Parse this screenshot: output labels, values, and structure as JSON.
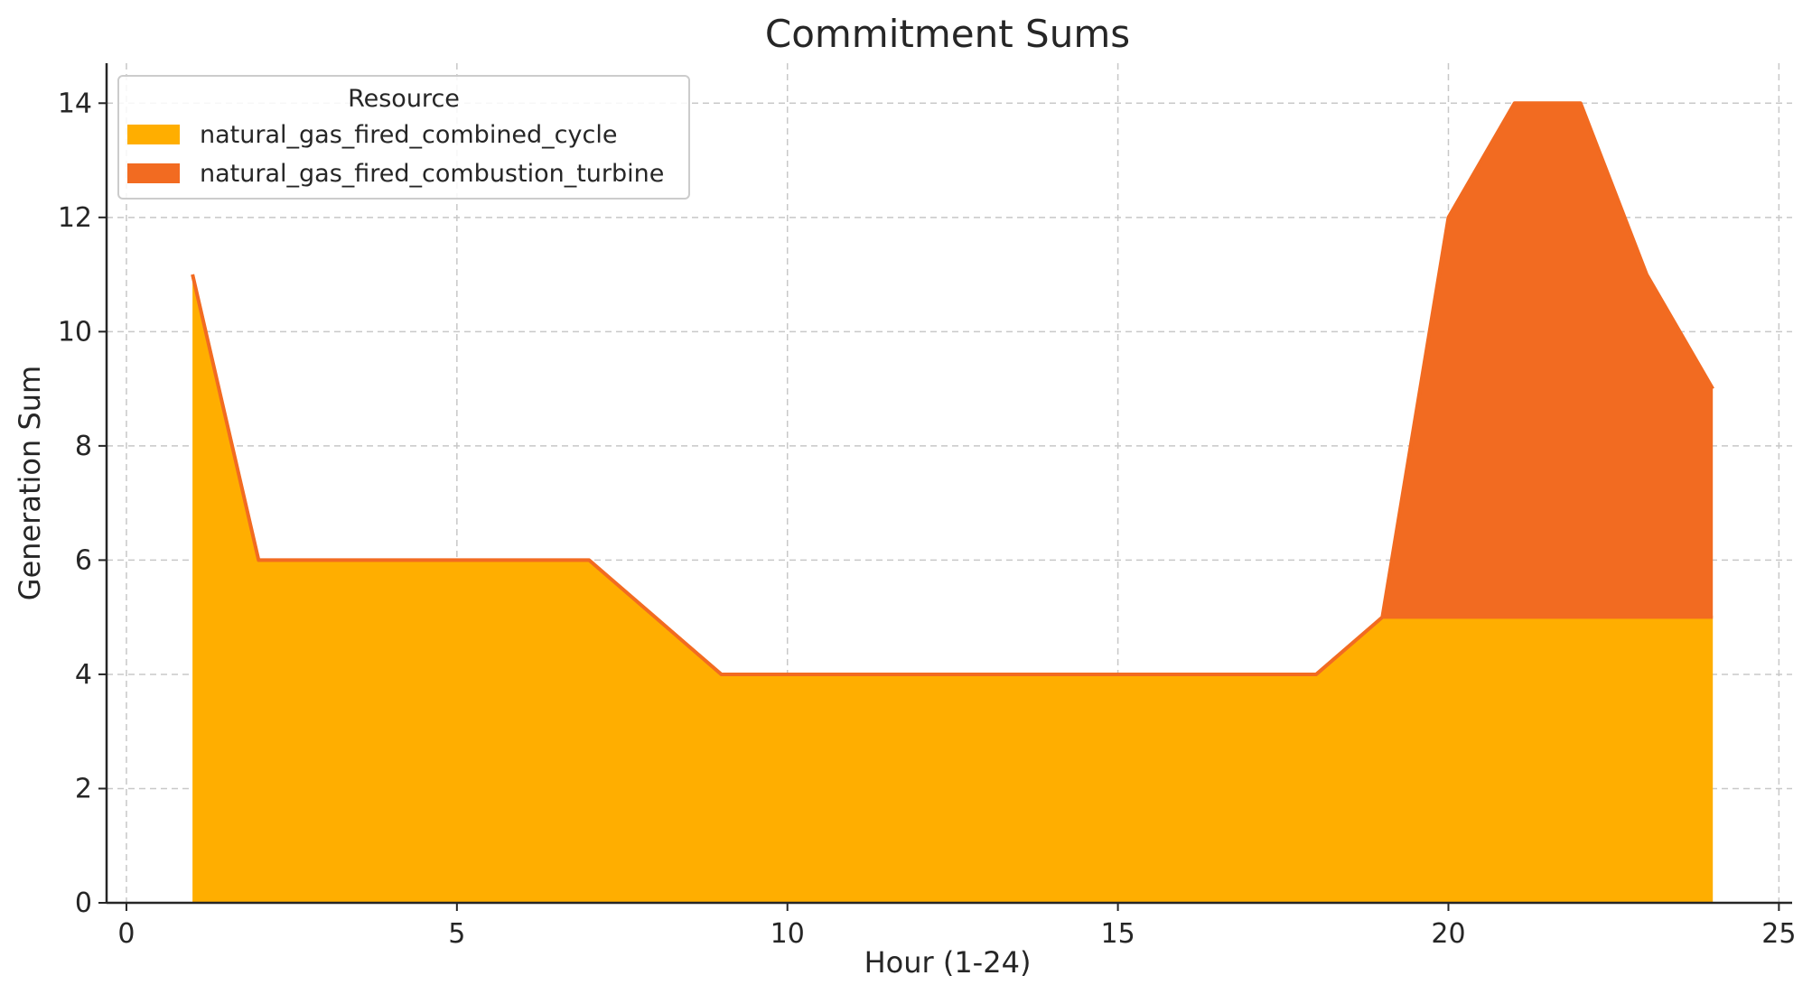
{
  "chart_data": {
    "type": "area",
    "stacked": true,
    "title": "Commitment Sums",
    "xlabel": "Hour (1-24)",
    "ylabel": "Generation Sum",
    "xlim": [
      -0.3,
      25.2
    ],
    "ylim": [
      0,
      14.7
    ],
    "xticks": [
      0,
      5,
      10,
      15,
      20,
      25
    ],
    "yticks": [
      0,
      2,
      4,
      6,
      8,
      10,
      12,
      14
    ],
    "grid": true,
    "legend": {
      "title": "Resource",
      "placement": "upper-left"
    },
    "x": [
      1,
      2,
      3,
      4,
      5,
      6,
      7,
      8,
      9,
      10,
      11,
      12,
      13,
      14,
      15,
      16,
      17,
      18,
      19,
      20,
      21,
      22,
      23,
      24
    ],
    "series": [
      {
        "name": "natural_gas_fired_combined_cycle",
        "color": "#ffae00",
        "values": [
          11,
          6,
          6,
          6,
          6,
          6,
          6,
          5,
          4,
          4,
          4,
          4,
          4,
          4,
          4,
          4,
          4,
          4,
          5,
          5,
          5,
          5,
          5,
          5
        ]
      },
      {
        "name": "natural_gas_fired_combustion_turbine",
        "color": "#f26b21",
        "values": [
          0,
          0,
          0,
          0,
          0,
          0,
          0,
          0,
          0,
          0,
          0,
          0,
          0,
          0,
          0,
          0,
          0,
          0,
          0,
          7,
          9,
          9,
          6,
          4
        ]
      }
    ]
  }
}
